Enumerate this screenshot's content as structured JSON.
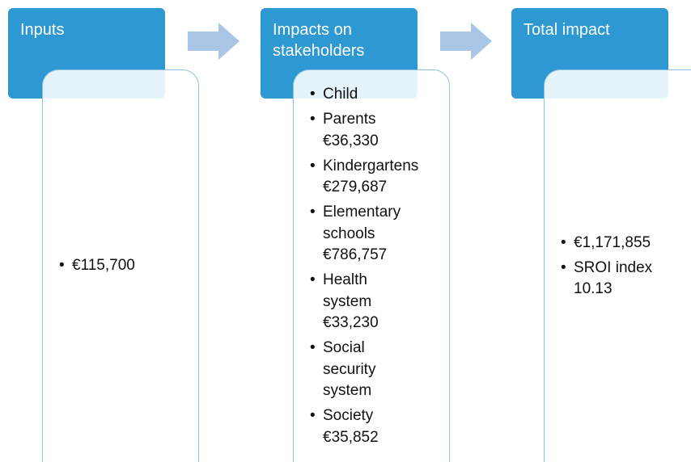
{
  "nodes": [
    {
      "header": [
        "Inputs"
      ],
      "items": [
        [
          "€115,700"
        ]
      ]
    },
    {
      "header": [
        "Impacts on",
        "stakeholders"
      ],
      "items": [
        [
          "Child"
        ],
        [
          "Parents",
          "€36,330"
        ],
        [
          "Kindergartens",
          "€279,687"
        ],
        [
          "Elementary",
          "schools",
          "€786,757"
        ],
        [
          "Health",
          "system",
          "€33,230"
        ],
        [
          "Social",
          "security",
          "system"
        ],
        [
          "Society",
          "€35,852"
        ]
      ]
    },
    {
      "header": [
        "Total impact"
      ],
      "items": [
        [
          "€1,171,855"
        ],
        [
          "SROI index",
          "10.13"
        ]
      ]
    }
  ]
}
